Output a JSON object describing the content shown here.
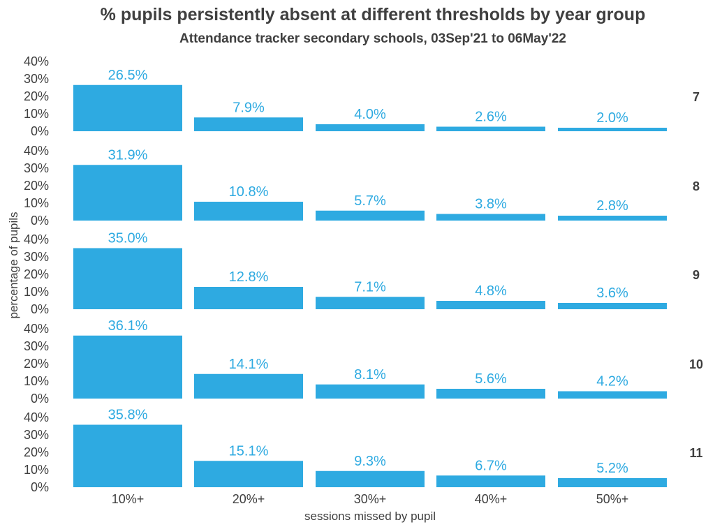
{
  "chart_data": {
    "type": "bar",
    "title": "% pupils persistently absent at different thresholds by year group",
    "subtitle": "Attendance tracker secondary schools, 03Sep'21 to 06May'22",
    "xlabel": "sessions missed by pupil",
    "ylabel": "percentage of pupils",
    "categories": [
      "10%+",
      "20%+",
      "30%+",
      "40%+",
      "50%+"
    ],
    "y_ticks": [
      "0%",
      "10%",
      "20%",
      "30%",
      "40%"
    ],
    "ylim": [
      0,
      40
    ],
    "bar_color": "#2EAAE1",
    "facets": [
      {
        "name": "7",
        "values": [
          26.5,
          7.9,
          4.0,
          2.6,
          2.0
        ],
        "labels": [
          "26.5%",
          "7.9%",
          "4.0%",
          "2.6%",
          "2.0%"
        ]
      },
      {
        "name": "8",
        "values": [
          31.9,
          10.8,
          5.7,
          3.8,
          2.8
        ],
        "labels": [
          "31.9%",
          "10.8%",
          "5.7%",
          "3.8%",
          "2.8%"
        ]
      },
      {
        "name": "9",
        "values": [
          35.0,
          12.8,
          7.1,
          4.8,
          3.6
        ],
        "labels": [
          "35.0%",
          "12.8%",
          "7.1%",
          "4.8%",
          "3.6%"
        ]
      },
      {
        "name": "10",
        "values": [
          36.1,
          14.1,
          8.1,
          5.6,
          4.2
        ],
        "labels": [
          "36.1%",
          "14.1%",
          "8.1%",
          "5.6%",
          "4.2%"
        ]
      },
      {
        "name": "11",
        "values": [
          35.8,
          15.1,
          9.3,
          6.7,
          5.2
        ],
        "labels": [
          "35.8%",
          "15.1%",
          "9.3%",
          "6.7%",
          "5.2%"
        ]
      }
    ]
  }
}
